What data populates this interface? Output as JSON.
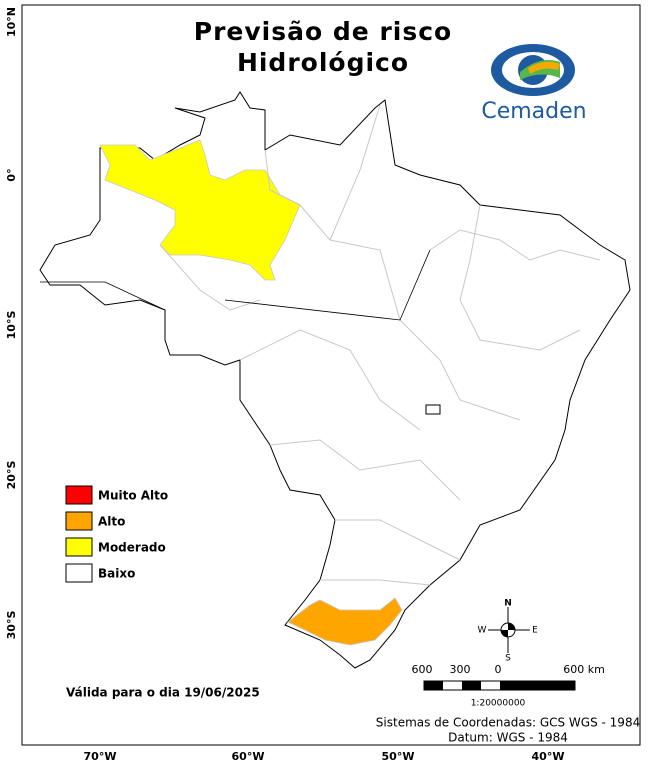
{
  "header": {
    "title_lines": [
      "Previsão de risco",
      "Hidrológico"
    ]
  },
  "logo": {
    "text": "Cemaden"
  },
  "axes": {
    "latitude": [
      "10°N",
      "0°",
      "10°S",
      "20°S",
      "30°S"
    ],
    "longitude": [
      "70°W",
      "60°W",
      "50°W",
      "40°W"
    ]
  },
  "legend": {
    "items": [
      {
        "label": "Muito Alto",
        "color": "#ff0000"
      },
      {
        "label": "Alto",
        "color": "#ffa500"
      },
      {
        "label": "Moderado",
        "color": "#ffff00"
      },
      {
        "label": "Baixo",
        "color": "#ffffff"
      }
    ]
  },
  "validity": "Válida para o dia 19/06/2025",
  "scale": {
    "labels": [
      "600",
      "300",
      "0",
      "600 km"
    ],
    "ratio": "1:20000000"
  },
  "compass": {
    "north": "N",
    "east": "E",
    "south": "S",
    "west": "W"
  },
  "footer": {
    "lines": [
      "Sistemas de Coordenadas: GCS WGS - 1984",
      "Datum: WGS - 1984"
    ]
  }
}
